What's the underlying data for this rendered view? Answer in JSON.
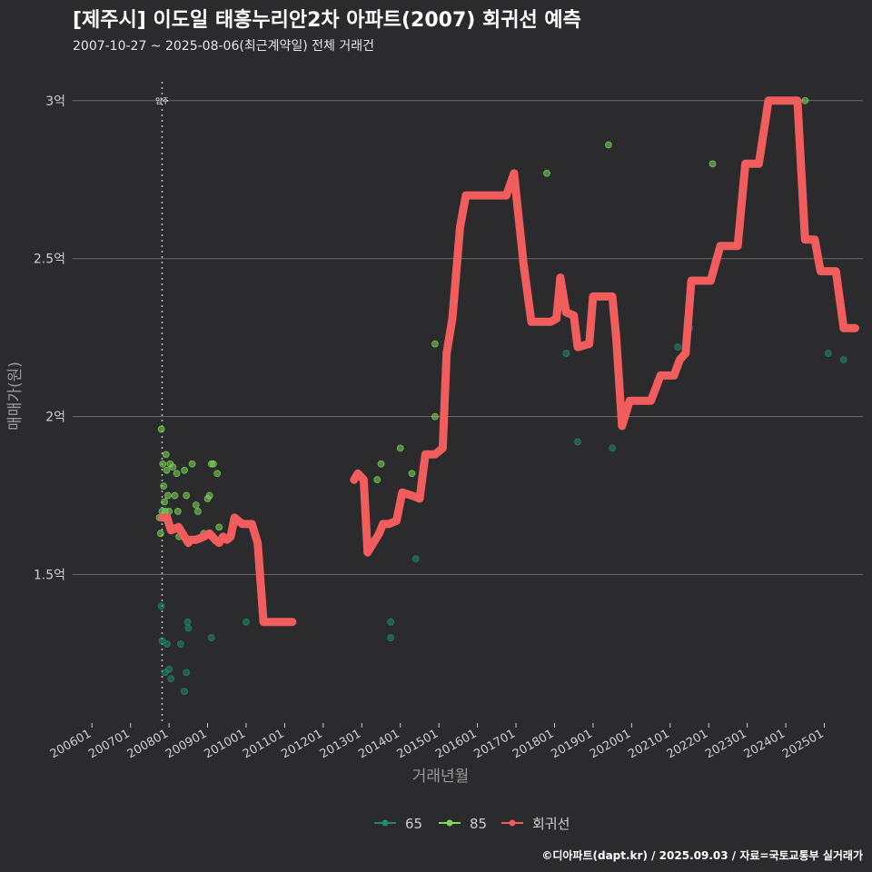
{
  "title": "[제주시] 이도일 태흥누리안2차 아파트(2007) 회귀선 예측",
  "subtitle": "2007-10-27 ~ 2025-08-06(최근계약일) 전체 거래건",
  "footer": "©디아파트(dapt.kr) / 2025.09.03 / 자료=국토교통부 실거래가",
  "colors": {
    "background": "#2b2a2c",
    "grid": "#6a6a6a",
    "text": "#cfcfcf",
    "axis_title": "#9a9a9a",
    "s65": "#1f8a70",
    "s85": "#7ed957",
    "regression": "#f15c5c"
  },
  "chart_data": {
    "type": "scatter+line",
    "xlabel": "거래년월",
    "ylabel": "매매가(원)",
    "xlim": [
      2005.5,
      2026.0
    ],
    "ylim": [
      1.03,
      3.1
    ],
    "y_unit": "억",
    "y_ticks": [
      1.5,
      2.0,
      2.5,
      3.0
    ],
    "y_tick_labels": [
      "1.5억",
      "2억",
      "2.5억",
      "3억"
    ],
    "x_ticks": [
      2006,
      2007,
      2008,
      2009,
      2010,
      2011,
      2012,
      2013,
      2014,
      2015,
      2016,
      2017,
      2018,
      2019,
      2020,
      2021,
      2022,
      2023,
      2024,
      2025
    ],
    "x_tick_labels": [
      "200601",
      "200701",
      "200801",
      "200901",
      "201001",
      "201101",
      "201201",
      "201301",
      "201401",
      "201501",
      "201601",
      "201701",
      "201801",
      "201901",
      "202001",
      "202101",
      "202201",
      "202301",
      "202401",
      "202501"
    ],
    "vline": {
      "x": 2007.82,
      "label": "입주"
    },
    "legend": [
      "65",
      "85",
      "회귀선"
    ],
    "series": [
      {
        "name": "65",
        "points": [
          [
            2007.8,
            1.4
          ],
          [
            2007.82,
            1.29
          ],
          [
            2007.9,
            1.19
          ],
          [
            2007.95,
            1.28
          ],
          [
            2008.0,
            1.2
          ],
          [
            2008.05,
            1.17
          ],
          [
            2008.3,
            1.28
          ],
          [
            2008.4,
            1.13
          ],
          [
            2008.45,
            1.19
          ],
          [
            2008.48,
            1.35
          ],
          [
            2008.5,
            1.33
          ],
          [
            2009.1,
            1.3
          ],
          [
            2010.0,
            1.35
          ],
          [
            2013.75,
            1.35
          ],
          [
            2013.75,
            1.3
          ],
          [
            2014.4,
            1.55
          ],
          [
            2018.3,
            2.2
          ],
          [
            2018.6,
            1.92
          ],
          [
            2019.5,
            1.9
          ],
          [
            2021.2,
            2.22
          ],
          [
            2021.5,
            2.28
          ],
          [
            2025.1,
            2.2
          ],
          [
            2025.5,
            2.18
          ]
        ]
      },
      {
        "name": "85",
        "points": [
          [
            2007.75,
            1.68
          ],
          [
            2007.78,
            1.63
          ],
          [
            2007.8,
            1.96
          ],
          [
            2007.82,
            1.7
          ],
          [
            2007.84,
            1.85
          ],
          [
            2007.86,
            1.78
          ],
          [
            2007.88,
            1.73
          ],
          [
            2007.9,
            1.7
          ],
          [
            2007.92,
            1.88
          ],
          [
            2007.94,
            1.83
          ],
          [
            2007.97,
            1.75
          ],
          [
            2008.0,
            1.7
          ],
          [
            2008.03,
            1.85
          ],
          [
            2008.06,
            1.65
          ],
          [
            2008.1,
            1.84
          ],
          [
            2008.15,
            1.75
          ],
          [
            2008.2,
            1.82
          ],
          [
            2008.23,
            1.7
          ],
          [
            2008.26,
            1.62
          ],
          [
            2008.4,
            1.83
          ],
          [
            2008.45,
            1.75
          ],
          [
            2008.6,
            1.85
          ],
          [
            2008.7,
            1.72
          ],
          [
            2008.75,
            1.7
          ],
          [
            2008.9,
            1.63
          ],
          [
            2009.0,
            1.74
          ],
          [
            2009.05,
            1.75
          ],
          [
            2009.1,
            1.85
          ],
          [
            2009.15,
            1.85
          ],
          [
            2009.25,
            1.82
          ],
          [
            2009.3,
            1.65
          ],
          [
            2013.4,
            1.8
          ],
          [
            2013.5,
            1.85
          ],
          [
            2014.0,
            1.9
          ],
          [
            2014.3,
            1.82
          ],
          [
            2014.9,
            2.0
          ],
          [
            2014.9,
            2.23
          ],
          [
            2017.8,
            2.77
          ],
          [
            2019.4,
            2.86
          ],
          [
            2022.1,
            2.8
          ],
          [
            2024.5,
            3.0
          ]
        ]
      },
      {
        "name": "회귀선",
        "points": [
          [
            2007.82,
            1.68
          ],
          [
            2007.95,
            1.68
          ],
          [
            2008.05,
            1.64
          ],
          [
            2008.25,
            1.65
          ],
          [
            2008.5,
            1.6
          ],
          [
            2008.55,
            1.61
          ],
          [
            2008.7,
            1.61
          ],
          [
            2008.9,
            1.62
          ],
          [
            2009.05,
            1.63
          ],
          [
            2009.2,
            1.61
          ],
          [
            2009.3,
            1.6
          ],
          [
            2009.4,
            1.62
          ],
          [
            2009.5,
            1.61
          ],
          [
            2009.6,
            1.62
          ],
          [
            2009.7,
            1.68
          ],
          [
            2009.9,
            1.66
          ],
          [
            2010.15,
            1.66
          ],
          [
            2010.3,
            1.6
          ],
          [
            2010.45,
            1.35
          ],
          [
            2011.2,
            1.35
          ],
          [
            2012.8,
            1.8
          ],
          [
            2012.9,
            1.82
          ],
          [
            2013.05,
            1.8
          ],
          [
            2013.15,
            1.57
          ],
          [
            2013.45,
            1.63
          ],
          [
            2013.55,
            1.66
          ],
          [
            2013.7,
            1.66
          ],
          [
            2013.9,
            1.67
          ],
          [
            2014.05,
            1.76
          ],
          [
            2014.3,
            1.75
          ],
          [
            2014.5,
            1.74
          ],
          [
            2014.65,
            1.88
          ],
          [
            2014.9,
            1.88
          ],
          [
            2015.1,
            1.9
          ],
          [
            2015.2,
            2.2
          ],
          [
            2015.35,
            2.31
          ],
          [
            2015.55,
            2.6
          ],
          [
            2015.7,
            2.7
          ],
          [
            2016.4,
            2.7
          ],
          [
            2016.75,
            2.7
          ],
          [
            2016.95,
            2.77
          ],
          [
            2017.2,
            2.48
          ],
          [
            2017.4,
            2.3
          ],
          [
            2017.9,
            2.3
          ],
          [
            2018.05,
            2.31
          ],
          [
            2018.15,
            2.44
          ],
          [
            2018.3,
            2.33
          ],
          [
            2018.5,
            2.32
          ],
          [
            2018.6,
            2.22
          ],
          [
            2018.9,
            2.23
          ],
          [
            2019.0,
            2.38
          ],
          [
            2019.5,
            2.38
          ],
          [
            2019.6,
            2.25
          ],
          [
            2019.75,
            1.97
          ],
          [
            2019.95,
            2.05
          ],
          [
            2020.5,
            2.05
          ],
          [
            2020.75,
            2.13
          ],
          [
            2021.1,
            2.13
          ],
          [
            2021.25,
            2.18
          ],
          [
            2021.4,
            2.2
          ],
          [
            2021.55,
            2.43
          ],
          [
            2022.05,
            2.43
          ],
          [
            2022.3,
            2.54
          ],
          [
            2022.75,
            2.54
          ],
          [
            2022.95,
            2.8
          ],
          [
            2023.3,
            2.8
          ],
          [
            2023.55,
            3.0
          ],
          [
            2024.05,
            3.0
          ],
          [
            2024.3,
            3.0
          ],
          [
            2024.5,
            2.56
          ],
          [
            2024.75,
            2.56
          ],
          [
            2024.9,
            2.46
          ],
          [
            2025.3,
            2.46
          ],
          [
            2025.5,
            2.28
          ],
          [
            2025.8,
            2.28
          ]
        ]
      }
    ]
  }
}
